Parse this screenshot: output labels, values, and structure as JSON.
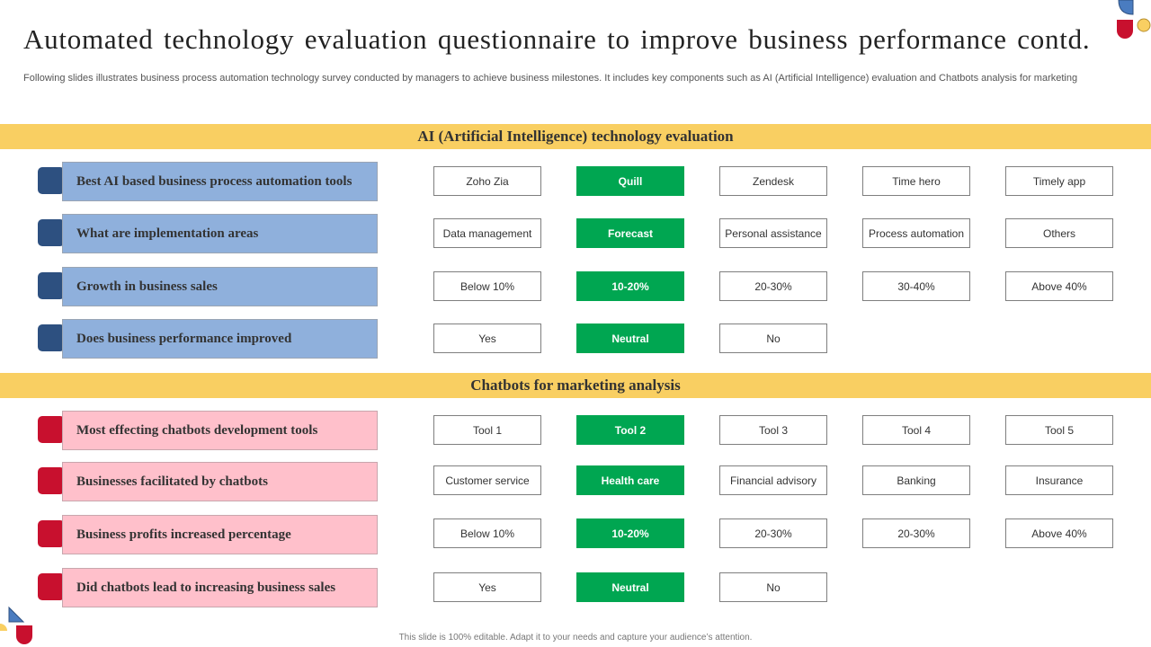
{
  "title": "Automated technology evaluation questionnaire to improve business performance contd.",
  "subtitle": "Following slides illustrates business process automation technology survey conducted by managers to achieve business milestones. It includes key components such as AI (Artificial Intelligence) evaluation and Chatbots analysis for marketing",
  "sections": [
    {
      "heading": "AI (Artificial Intelligence) technology evaluation",
      "questions": [
        {
          "text": "Best AI based business process automation  tools",
          "options": [
            "Zoho Zia",
            "Quill",
            "Zendesk",
            "Time hero",
            "Timely app"
          ]
        },
        {
          "text": "What are implementation  areas",
          "options": [
            "Data management",
            "Forecast",
            "Personal assistance",
            "Process automation",
            "Others"
          ]
        },
        {
          "text": "Growth  in business sales",
          "options": [
            "Below 10%",
            "10-20%",
            "20-30%",
            "30-40%",
            "Above 40%"
          ]
        },
        {
          "text": "Does business performance  improved",
          "options": [
            "Yes",
            "Neutral",
            "No"
          ]
        }
      ]
    },
    {
      "heading": "Chatbots for marketing analysis",
      "questions": [
        {
          "text": "Most effecting chatbots  development tools",
          "options": [
            "Tool 1",
            "Tool 2",
            "Tool 3",
            "Tool 4",
            "Tool 5"
          ]
        },
        {
          "text": "Businesses facilitated by chatbots",
          "options": [
            "Customer service",
            "Health care",
            "Financial advisory",
            "Banking",
            "Insurance"
          ]
        },
        {
          "text": "Business profits  increased percentage",
          "options": [
            "Below 10%",
            "10-20%",
            "20-30%",
            "20-30%",
            "Above 40%"
          ]
        },
        {
          "text": "Did chatbots lead to increasing business sales",
          "options": [
            "Yes",
            "Neutral",
            "No"
          ]
        }
      ]
    }
  ],
  "selected_option_index": 1,
  "footer": "This slide is 100% editable.  Adapt it to your needs and capture your audience’s attention.",
  "colors": {
    "band": "#f9cf62",
    "selected": "#00a651",
    "ai_question_fill": "#8fb0dc",
    "ai_question_tab": "#2d5080",
    "chatbot_question_fill": "#ffc0cb",
    "chatbot_question_tab": "#c8102e"
  }
}
